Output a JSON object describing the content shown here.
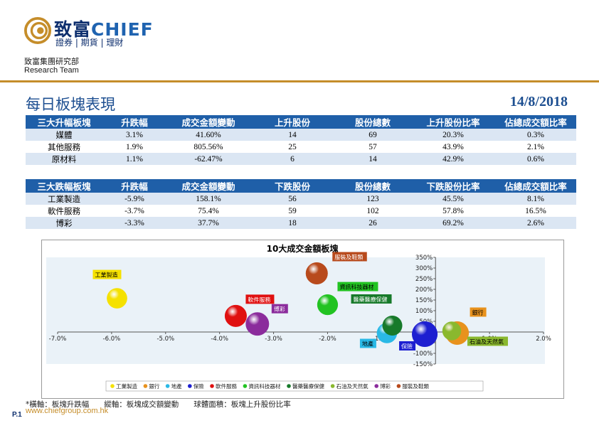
{
  "header": {
    "logo_cn": "致富",
    "logo_en": "CHIEF",
    "logo_sub": "證券 | 期貨 | 理財",
    "dept_cn": "致富集團研究部",
    "dept_en": "Research Team"
  },
  "page": {
    "title": "每日板塊表現",
    "date": "14/8/2018"
  },
  "colors": {
    "brand_blue": "#1f5fa8",
    "brand_gold": "#c58d2a",
    "row_alt": "#dbe6f3"
  },
  "gainers": {
    "headers": [
      "三大升幅板塊",
      "升跌幅",
      "成交金額變動",
      "上升股份",
      "股份總數",
      "上升股份比率",
      "佔總成交額比率"
    ],
    "rows": [
      [
        "媒體",
        "3.1%",
        "41.60%",
        "14",
        "69",
        "20.3%",
        "0.3%"
      ],
      [
        "其他服務",
        "1.9%",
        "805.56%",
        "25",
        "57",
        "43.9%",
        "2.1%"
      ],
      [
        "原材料",
        "1.1%",
        "-62.47%",
        "6",
        "14",
        "42.9%",
        "0.6%"
      ]
    ]
  },
  "losers": {
    "headers": [
      "三大跌幅板塊",
      "升跌幅",
      "成交金額變動",
      "下跌股份",
      "股份總數",
      "下跌股份比率",
      "佔總成交額比率"
    ],
    "rows": [
      [
        "工業製造",
        "-5.9%",
        "158.1%",
        "56",
        "123",
        "45.5%",
        "8.1%"
      ],
      [
        "軟件服務",
        "-3.7%",
        "75.4%",
        "59",
        "102",
        "57.8%",
        "16.5%"
      ],
      [
        "博彩",
        "-3.3%",
        "37.7%",
        "18",
        "26",
        "69.2%",
        "2.6%"
      ]
    ]
  },
  "chart_data": {
    "type": "scatter",
    "title": "10大成交金額板塊",
    "xlim": [
      -7.0,
      2.0
    ],
    "ylim": [
      -150,
      350
    ],
    "x_ticks": [
      "-7.0%",
      "-6.0%",
      "-5.0%",
      "-4.0%",
      "-3.0%",
      "-2.0%",
      "-1.0%",
      "1.0%",
      "2.0%"
    ],
    "x_tick_values": [
      -7,
      -6,
      -5,
      -4,
      -3,
      -2,
      -1,
      1,
      2
    ],
    "y_ticks": [
      "350%",
      "300%",
      "250%",
      "200%",
      "150%",
      "100%",
      "50%",
      "0%",
      "-50%",
      "-100%",
      "-150%"
    ],
    "y_tick_values": [
      350,
      300,
      250,
      200,
      150,
      100,
      50,
      0,
      -50,
      -100,
      -150
    ],
    "grid": false,
    "legend_position": "bottom",
    "series": [
      {
        "name": "工業製造",
        "x": -5.9,
        "y": 158.1,
        "size": 45.5,
        "color": "#f5e100"
      },
      {
        "name": "銀行",
        "x": 0.4,
        "y": -5,
        "size": 70,
        "color": "#e8921d"
      },
      {
        "name": "地產",
        "x": -0.9,
        "y": -5,
        "size": 45,
        "color": "#2ab9e6"
      },
      {
        "name": "保險",
        "x": -0.2,
        "y": -10,
        "size": 90,
        "color": "#1d1fd1"
      },
      {
        "name": "軟件服務",
        "x": -3.7,
        "y": 75.4,
        "size": 57.8,
        "color": "#e01010"
      },
      {
        "name": "資訊科技器材",
        "x": -2.0,
        "y": 128,
        "size": 48,
        "color": "#22c322"
      },
      {
        "name": "醫藥醫療保健",
        "x": -0.8,
        "y": 30,
        "size": 42,
        "color": "#177a2a"
      },
      {
        "name": "石油及天然氣",
        "x": 0.3,
        "y": 5,
        "size": 35,
        "color": "#8ab82e"
      },
      {
        "name": "博彩",
        "x": -3.3,
        "y": 37.7,
        "size": 69.2,
        "color": "#8b2c9c"
      },
      {
        "name": "服裝及鞋類",
        "x": -2.2,
        "y": 275,
        "size": 58,
        "color": "#b84a1c"
      }
    ],
    "labels": [
      {
        "text": "工業製造",
        "bg": "#f5e100",
        "fg": "#000"
      },
      {
        "text": "銀行",
        "bg": "#e8921d",
        "fg": "#000"
      },
      {
        "text": "地產",
        "bg": "#2ab9e6",
        "fg": "#000"
      },
      {
        "text": "保險",
        "bg": "#1d1fd1",
        "fg": "#fff"
      },
      {
        "text": "軟件服務",
        "bg": "#e01010",
        "fg": "#fff"
      },
      {
        "text": "資訊科技器材",
        "bg": "#22c322",
        "fg": "#000"
      },
      {
        "text": "醫藥醫療保健",
        "bg": "#177a2a",
        "fg": "#fff"
      },
      {
        "text": "石油及天然氣",
        "bg": "#8ab82e",
        "fg": "#000"
      },
      {
        "text": "博彩",
        "bg": "#8b2c9c",
        "fg": "#fff"
      },
      {
        "text": "服裝及鞋類",
        "bg": "#b84a1c",
        "fg": "#fff"
      }
    ]
  },
  "footer": {
    "note": "*橫軸：板塊升跌幅　　縱軸：板塊成交額變動　　球體面積：板塊上升股份比率",
    "url": "www.chiefgroup.com.hk",
    "page": "P.1"
  }
}
